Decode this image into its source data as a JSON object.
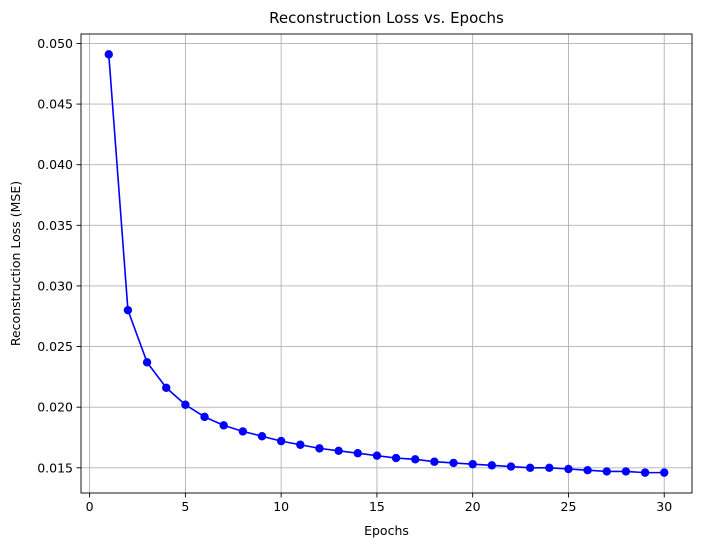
{
  "chart_data": {
    "type": "line",
    "title": "Reconstruction Loss vs. Epochs",
    "xlabel": "Epochs",
    "ylabel": "Reconstruction Loss (MSE)",
    "xlim": [
      -0.45,
      31.45
    ],
    "ylim": [
      0.01292,
      0.05078
    ],
    "xticks": [
      0,
      5,
      10,
      15,
      20,
      25,
      30
    ],
    "xtick_labels": [
      "0",
      "5",
      "10",
      "15",
      "20",
      "25",
      "30"
    ],
    "yticks": [
      0.015,
      0.02,
      0.025,
      0.03,
      0.035,
      0.04,
      0.045,
      0.05
    ],
    "ytick_labels": [
      "0.015",
      "0.020",
      "0.025",
      "0.030",
      "0.035",
      "0.040",
      "0.045",
      "0.050"
    ],
    "grid": true,
    "marker": "circle",
    "color": "#0000ff",
    "series": [
      {
        "x": [
          1,
          2,
          3,
          4,
          5,
          6,
          7,
          8,
          9,
          10,
          11,
          12,
          13,
          14,
          15,
          16,
          17,
          18,
          19,
          20,
          21,
          22,
          23,
          24,
          25,
          26,
          27,
          28,
          29,
          30
        ],
        "values": [
          0.0491,
          0.028,
          0.0237,
          0.0216,
          0.0202,
          0.0192,
          0.0185,
          0.018,
          0.0176,
          0.0172,
          0.0169,
          0.0166,
          0.0164,
          0.0162,
          0.016,
          0.0158,
          0.0157,
          0.0155,
          0.0154,
          0.0153,
          0.0152,
          0.0151,
          0.015,
          0.015,
          0.0149,
          0.0148,
          0.0147,
          0.0147,
          0.0146,
          0.0146
        ]
      }
    ]
  }
}
